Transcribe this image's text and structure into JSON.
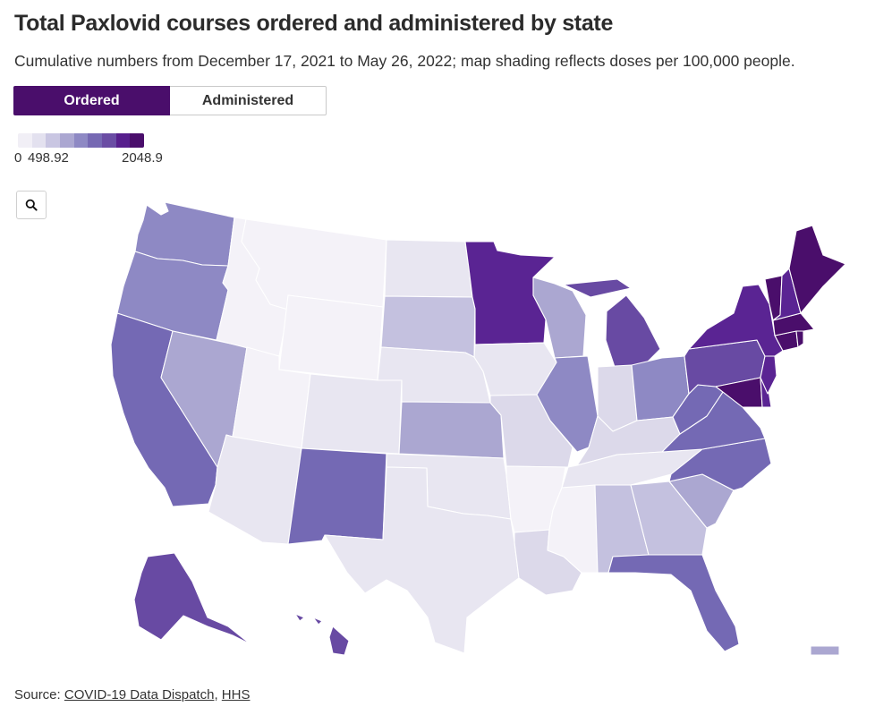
{
  "header": {
    "title": "Total Paxlovid courses ordered and administered by state",
    "subtitle": "Cumulative numbers from December 17, 2021 to May 26, 2022; map shading reflects doses per 100,000 people."
  },
  "toggle": {
    "ordered_label": "Ordered",
    "administered_label": "Administered",
    "selected": "Ordered"
  },
  "legend": {
    "min_label": "0",
    "mid_label": "498.92",
    "max_label": "2048.9",
    "colors": [
      "#f1eff6",
      "#e3e1ef",
      "#c9c6e2",
      "#aba7d1",
      "#8e89c4",
      "#7669b3",
      "#6a4da4",
      "#571f8d",
      "#4a0e6b"
    ]
  },
  "map": {
    "icon": "search-icon",
    "colors": {
      "c0": "#f4f2f8",
      "c1": "#e8e6f1",
      "c2": "#dcd9ea",
      "c3": "#c4c1df",
      "c4": "#aba7d1",
      "c5": "#8e89c4",
      "c6": "#7469b4",
      "c7": "#684aa3",
      "c8": "#5a2493",
      "c9": "#4a0e6b"
    },
    "states": [
      {
        "id": "WA",
        "c": "c5"
      },
      {
        "id": "OR",
        "c": "c5"
      },
      {
        "id": "CA",
        "c": "c6"
      },
      {
        "id": "NV",
        "c": "c4"
      },
      {
        "id": "ID",
        "c": "c0"
      },
      {
        "id": "MT",
        "c": "c0"
      },
      {
        "id": "WY",
        "c": "c0"
      },
      {
        "id": "UT",
        "c": "c0"
      },
      {
        "id": "AZ",
        "c": "c1"
      },
      {
        "id": "CO",
        "c": "c1"
      },
      {
        "id": "NM",
        "c": "c6"
      },
      {
        "id": "ND",
        "c": "c1"
      },
      {
        "id": "SD",
        "c": "c3"
      },
      {
        "id": "NE",
        "c": "c1"
      },
      {
        "id": "KS",
        "c": "c4"
      },
      {
        "id": "OK",
        "c": "c1"
      },
      {
        "id": "TX",
        "c": "c1"
      },
      {
        "id": "MN",
        "c": "c8"
      },
      {
        "id": "IA",
        "c": "c1"
      },
      {
        "id": "MO",
        "c": "c2"
      },
      {
        "id": "AR",
        "c": "c0"
      },
      {
        "id": "LA",
        "c": "c2"
      },
      {
        "id": "WI",
        "c": "c4"
      },
      {
        "id": "IL",
        "c": "c5"
      },
      {
        "id": "MI",
        "c": "c7"
      },
      {
        "id": "IN",
        "c": "c2"
      },
      {
        "id": "OH",
        "c": "c5"
      },
      {
        "id": "KY",
        "c": "c2"
      },
      {
        "id": "TN",
        "c": "c1"
      },
      {
        "id": "MS",
        "c": "c0"
      },
      {
        "id": "AL",
        "c": "c3"
      },
      {
        "id": "GA",
        "c": "c3"
      },
      {
        "id": "FL",
        "c": "c6"
      },
      {
        "id": "SC",
        "c": "c4"
      },
      {
        "id": "NC",
        "c": "c6"
      },
      {
        "id": "VA",
        "c": "c6"
      },
      {
        "id": "WV",
        "c": "c6"
      },
      {
        "id": "PA",
        "c": "c7"
      },
      {
        "id": "NY",
        "c": "c8"
      },
      {
        "id": "MD",
        "c": "c9"
      },
      {
        "id": "DE",
        "c": "c8"
      },
      {
        "id": "NJ",
        "c": "c8"
      },
      {
        "id": "CT",
        "c": "c9"
      },
      {
        "id": "RI",
        "c": "c9"
      },
      {
        "id": "MA",
        "c": "c9"
      },
      {
        "id": "VT",
        "c": "c9"
      },
      {
        "id": "NH",
        "c": "c8"
      },
      {
        "id": "ME",
        "c": "c9"
      },
      {
        "id": "AK",
        "c": "c7"
      },
      {
        "id": "HI",
        "c": "c7"
      },
      {
        "id": "PR",
        "c": "c4"
      }
    ]
  },
  "source": {
    "prefix": "Source: ",
    "link1": "COVID-19 Data Dispatch",
    "separator": ", ",
    "link2": "HHS"
  }
}
